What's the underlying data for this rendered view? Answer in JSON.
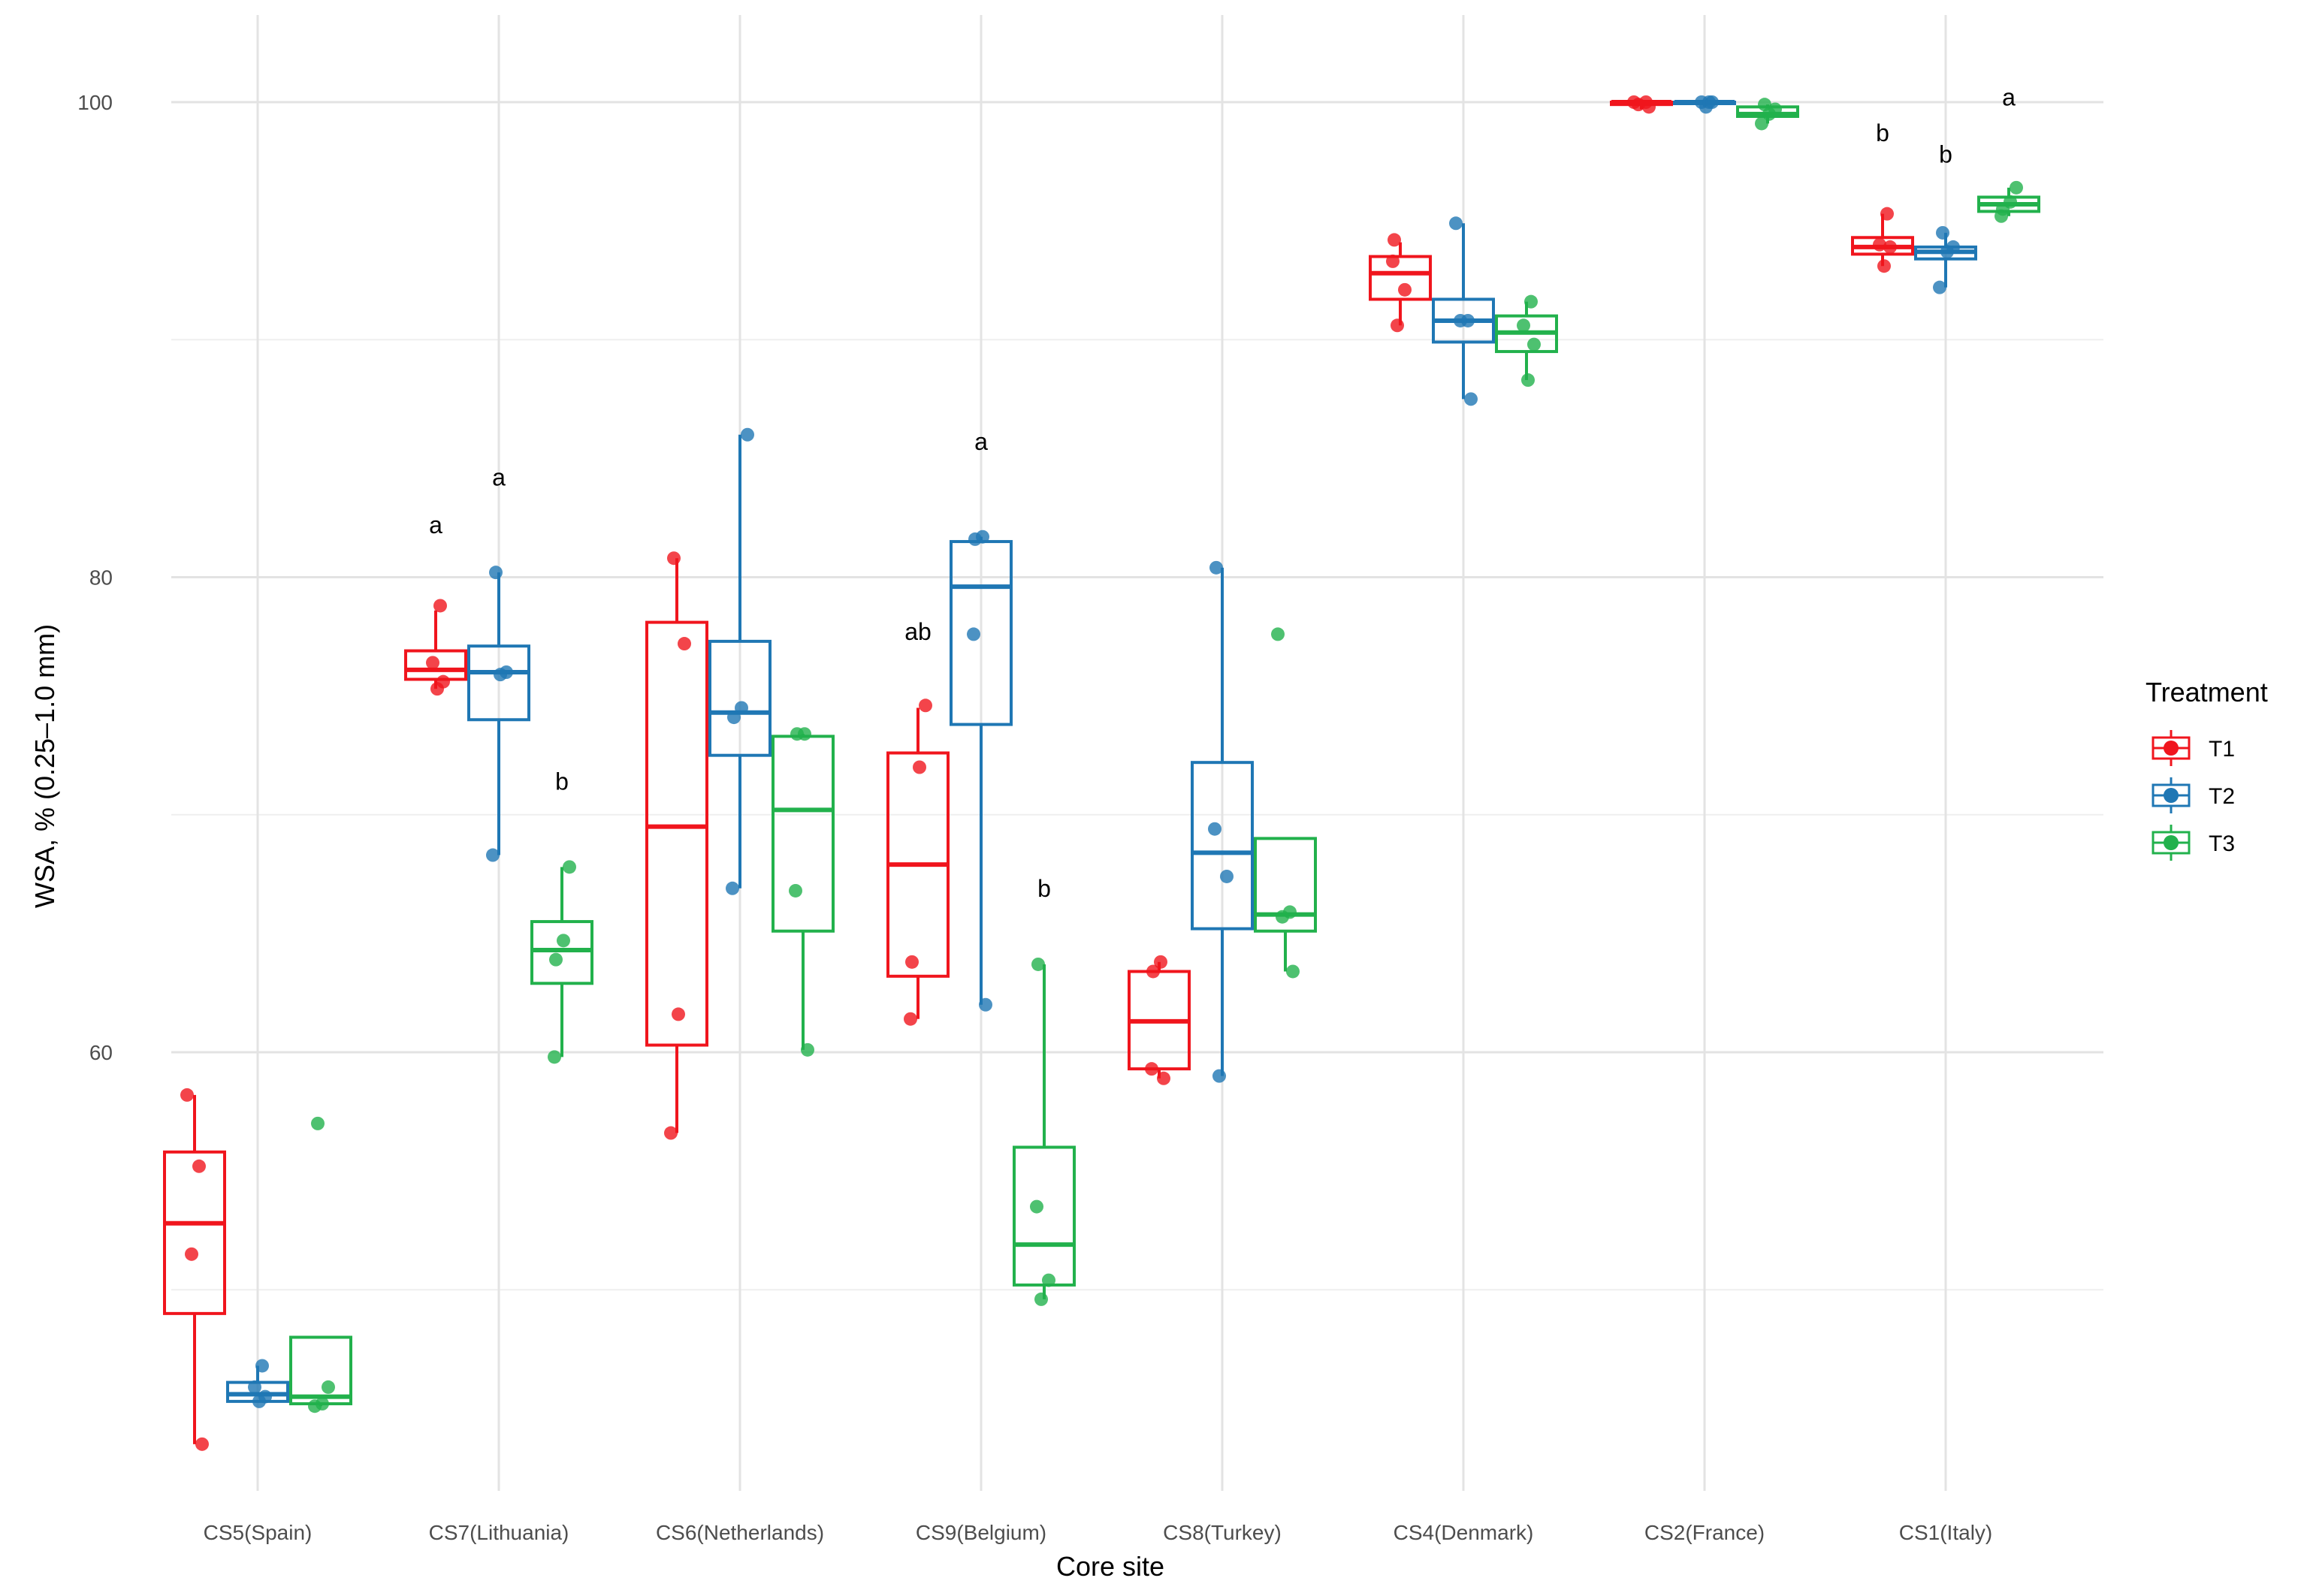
{
  "chart_data": {
    "type": "boxplot",
    "title": "",
    "xlabel": "Core site",
    "ylabel": "WSA, % (0.25–1.0 mm)",
    "ylim": [
      42.5,
      103
    ],
    "y_ticks": [
      60,
      80,
      100
    ],
    "y_tick_labels": [
      "60",
      "80",
      "100"
    ],
    "grid": true,
    "legend": {
      "title": "Treatment",
      "position": "right"
    },
    "categories": [
      "CS5(Spain)",
      "CS7(Lithuania)",
      "CS6(Netherlands)",
      "CS9(Belgium)",
      "CS8(Turkey)",
      "CS4(Denmark)",
      "CS2(France)",
      "CS1(Italy)"
    ],
    "series": [
      {
        "name": "T1",
        "color": "#f0151d",
        "boxes": [
          {
            "q1": 49,
            "median": 52.8,
            "q3": 55.8,
            "whisker_low": 43.5,
            "whisker_high": 58.2,
            "points": [
              58.2,
              55.2,
              51.5,
              43.5
            ]
          },
          {
            "q1": 75.7,
            "median": 76.1,
            "q3": 76.9,
            "whisker_low": 75.3,
            "whisker_high": 78.6,
            "points": [
              78.8,
              76.4,
              75.6,
              75.3
            ]
          },
          {
            "q1": 60.3,
            "median": 69.5,
            "q3": 78.1,
            "whisker_low": 56.6,
            "whisker_high": 80.8,
            "points": [
              80.8,
              77.2,
              61.6,
              56.6
            ]
          },
          {
            "q1": 63.2,
            "median": 67.9,
            "q3": 72.6,
            "whisker_low": 61.4,
            "whisker_high": 74.5,
            "points": [
              74.6,
              72.0,
              63.8,
              61.4
            ]
          },
          {
            "q1": 59.3,
            "median": 61.3,
            "q3": 63.4,
            "whisker_low": 58.9,
            "whisker_high": 63.8,
            "points": [
              63.8,
              63.4,
              59.3,
              58.9
            ]
          },
          {
            "q1": 91.7,
            "median": 92.8,
            "q3": 93.5,
            "whisker_low": 90.6,
            "whisker_high": 94.1,
            "points": [
              94.2,
              93.3,
              92.1,
              90.6
            ]
          },
          {
            "q1": 99.9,
            "median": 100.0,
            "q3": 100.0,
            "whisker_low": 99.7,
            "whisker_high": 100.0,
            "points": [
              100.0,
              100.0,
              99.9,
              99.8
            ]
          },
          {
            "q1": 93.6,
            "median": 93.9,
            "q3": 94.3,
            "whisker_low": 93.1,
            "whisker_high": 95.3,
            "points": [
              95.3,
              94.0,
              93.9,
              93.1
            ]
          }
        ]
      },
      {
        "name": "T2",
        "color": "#1f77b4",
        "boxes": [
          {
            "q1": 45.3,
            "median": 45.6,
            "q3": 46.1,
            "whisker_low": 45.3,
            "whisker_high": 46.8,
            "points": [
              46.8,
              45.9,
              45.5,
              45.3
            ]
          },
          {
            "q1": 74.0,
            "median": 76.0,
            "q3": 77.1,
            "whisker_low": 68.3,
            "whisker_high": 80.2,
            "points": [
              80.2,
              76.0,
              75.9,
              68.3
            ]
          },
          {
            "q1": 72.5,
            "median": 74.3,
            "q3": 77.3,
            "whisker_low": 66.9,
            "whisker_high": 86.0,
            "points": [
              86.0,
              74.5,
              74.1,
              66.9
            ]
          },
          {
            "q1": 73.8,
            "median": 79.6,
            "q3": 81.5,
            "whisker_low": 62.0,
            "whisker_high": 81.7,
            "points": [
              81.7,
              81.6,
              77.6,
              62.0
            ]
          },
          {
            "q1": 65.2,
            "median": 68.4,
            "q3": 72.2,
            "whisker_low": 59.0,
            "whisker_high": 80.4,
            "points": [
              80.4,
              69.4,
              67.4,
              59.0
            ]
          },
          {
            "q1": 89.9,
            "median": 90.8,
            "q3": 91.7,
            "whisker_low": 87.5,
            "whisker_high": 94.9,
            "points": [
              94.9,
              90.8,
              90.8,
              87.5
            ]
          },
          {
            "q1": 100.0,
            "median": 100.0,
            "q3": 100.0,
            "whisker_low": 99.8,
            "whisker_high": 100.0,
            "points": [
              100.0,
              100.0,
              100.0,
              99.8
            ]
          },
          {
            "q1": 93.4,
            "median": 93.7,
            "q3": 93.9,
            "whisker_low": 92.2,
            "whisker_high": 94.5,
            "points": [
              94.5,
              93.9,
              93.7,
              92.2
            ]
          }
        ]
      },
      {
        "name": "T3",
        "color": "#22b14c",
        "boxes": [
          {
            "q1": 45.2,
            "median": 45.5,
            "q3": 48.0,
            "whisker_low": 45.1,
            "whisker_high": 48.0,
            "points": [
              57.0,
              45.9,
              45.2,
              45.1
            ]
          },
          {
            "q1": 62.9,
            "median": 64.3,
            "q3": 65.5,
            "whisker_low": 59.8,
            "whisker_high": 67.8,
            "points": [
              67.8,
              64.7,
              63.9,
              59.8
            ]
          },
          {
            "q1": 65.1,
            "median": 70.2,
            "q3": 73.3,
            "whisker_low": 60.1,
            "whisker_high": 73.4,
            "points": [
              73.4,
              73.4,
              66.8,
              60.1
            ]
          },
          {
            "q1": 50.2,
            "median": 51.9,
            "q3": 56.0,
            "whisker_low": 49.6,
            "whisker_high": 63.7,
            "points": [
              63.7,
              53.5,
              50.4,
              49.6
            ]
          },
          {
            "q1": 65.1,
            "median": 65.8,
            "q3": 69.0,
            "whisker_low": 63.4,
            "whisker_high": 69.0,
            "points": [
              77.6,
              65.9,
              65.7,
              63.4
            ]
          },
          {
            "q1": 89.5,
            "median": 90.3,
            "q3": 91.0,
            "whisker_low": 88.3,
            "whisker_high": 91.6,
            "points": [
              91.6,
              90.6,
              89.8,
              88.3
            ]
          },
          {
            "q1": 99.4,
            "median": 99.5,
            "q3": 99.8,
            "whisker_low": 99.1,
            "whisker_high": 99.9,
            "points": [
              99.9,
              99.7,
              99.5,
              99.1
            ]
          },
          {
            "q1": 95.4,
            "median": 95.7,
            "q3": 96.0,
            "whisker_low": 95.2,
            "whisker_high": 96.4,
            "points": [
              96.4,
              95.8,
              95.5,
              95.2
            ]
          }
        ]
      }
    ],
    "annotations": [
      {
        "category": "CS7(Lithuania)",
        "series": "T1",
        "text": "a",
        "y": 82.2
      },
      {
        "category": "CS7(Lithuania)",
        "series": "T2",
        "text": "a",
        "y": 84.2
      },
      {
        "category": "CS7(Lithuania)",
        "series": "T3",
        "text": "b",
        "y": 71.4
      },
      {
        "category": "CS9(Belgium)",
        "series": "T1",
        "text": "ab",
        "y": 77.7
      },
      {
        "category": "CS9(Belgium)",
        "series": "T2",
        "text": "a",
        "y": 85.7
      },
      {
        "category": "CS9(Belgium)",
        "series": "T3",
        "text": "b",
        "y": 66.9
      },
      {
        "category": "CS1(Italy)",
        "series": "T1",
        "text": "b",
        "y": 98.7
      },
      {
        "category": "CS1(Italy)",
        "series": "T2",
        "text": "b",
        "y": 97.8
      },
      {
        "category": "CS1(Italy)",
        "series": "T3",
        "text": "a",
        "y": 100.2
      }
    ]
  }
}
